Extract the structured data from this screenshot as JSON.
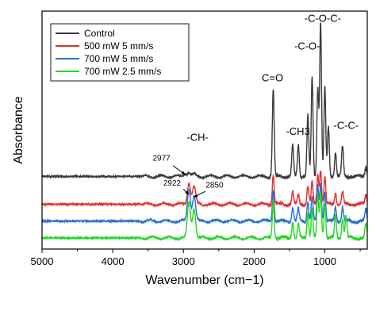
{
  "chart_data": {
    "type": "line",
    "xlabel": "Wavenumber (cm−1)",
    "ylabel": "Absorbance",
    "xlim": [
      5000,
      400
    ],
    "x_reversed": true,
    "x_ticks": [
      "5000",
      "4000",
      "3000",
      "2000",
      "1000"
    ],
    "y_ticks_shown": false,
    "grid": false,
    "legend_position": "top-left",
    "series": [
      {
        "name": "Control",
        "color": "#3a3a3a",
        "offset": 0.62,
        "peaks": [
          [
            2977,
            0.03
          ],
          [
            2922,
            0.04
          ],
          [
            2850,
            0.02
          ],
          [
            1730,
            0.88
          ],
          [
            1455,
            0.32
          ],
          [
            1375,
            0.32
          ],
          [
            1240,
            0.62
          ],
          [
            1180,
            1.0
          ],
          [
            1100,
            0.9
          ],
          [
            1060,
            1.55
          ],
          [
            1000,
            0.9
          ],
          [
            950,
            0.5
          ],
          [
            850,
            0.25
          ],
          [
            750,
            0.3
          ],
          [
            420,
            0.1
          ]
        ]
      },
      {
        "name": "500 mW 5 mm/s",
        "color": "#e03030",
        "offset": 0.34,
        "peaks": [
          [
            2922,
            0.22
          ],
          [
            2850,
            0.18
          ],
          [
            1730,
            0.3
          ],
          [
            1455,
            0.12
          ],
          [
            1375,
            0.1
          ],
          [
            1240,
            0.18
          ],
          [
            1180,
            0.22
          ],
          [
            1100,
            0.3
          ],
          [
            1060,
            0.35
          ],
          [
            1000,
            0.28
          ],
          [
            850,
            0.12
          ],
          [
            750,
            0.12
          ],
          [
            420,
            0.1
          ]
        ]
      },
      {
        "name": "700 mW 5 mm/s",
        "color": "#2a6fd0",
        "offset": 0.17,
        "peaks": [
          [
            2922,
            0.32
          ],
          [
            2850,
            0.26
          ],
          [
            1730,
            0.32
          ],
          [
            1455,
            0.14
          ],
          [
            1375,
            0.12
          ],
          [
            1240,
            0.2
          ],
          [
            1180,
            0.25
          ],
          [
            1100,
            0.36
          ],
          [
            1060,
            0.38
          ],
          [
            1000,
            0.3
          ],
          [
            850,
            0.14
          ],
          [
            750,
            0.14
          ],
          [
            420,
            0.12
          ]
        ]
      },
      {
        "name": "700 mW 2.5 mm/s",
        "color": "#22d822",
        "offset": 0.0,
        "peaks": [
          [
            2922,
            0.36
          ],
          [
            2850,
            0.3
          ],
          [
            1730,
            0.38
          ],
          [
            1455,
            0.16
          ],
          [
            1375,
            0.14
          ],
          [
            1240,
            0.26
          ],
          [
            1180,
            0.3
          ],
          [
            1100,
            0.42
          ],
          [
            1060,
            0.45
          ],
          [
            1000,
            0.36
          ],
          [
            850,
            0.22
          ],
          [
            750,
            0.2
          ],
          [
            700,
            0.22
          ],
          [
            420,
            0.14
          ]
        ]
      }
    ],
    "annotations": [
      {
        "text": "-CH-",
        "x": 2800,
        "y": 0.98
      },
      {
        "text": "C=O",
        "x": 1740,
        "y": 1.58
      },
      {
        "text": "-CH3",
        "x": 1380,
        "y": 1.04
      },
      {
        "text": "-C-O-",
        "x": 1250,
        "y": 1.9
      },
      {
        "text": "-C-O-C-",
        "x": 1030,
        "y": 2.18
      },
      {
        "text": "-C-C-",
        "x": 700,
        "y": 1.1
      },
      {
        "text": "2977",
        "x": 3310,
        "y": 0.78
      },
      {
        "text": "2922",
        "x": 3160,
        "y": 0.53
      },
      {
        "text": "2850",
        "x": 2560,
        "y": 0.51
      }
    ]
  }
}
